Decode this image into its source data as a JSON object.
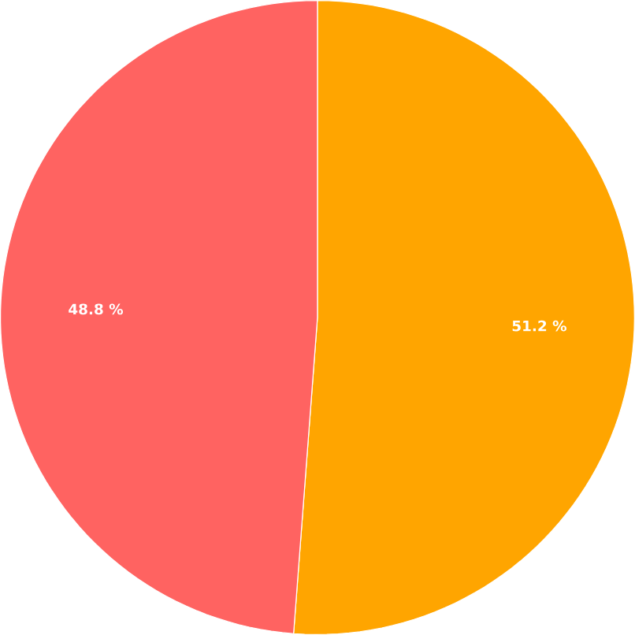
{
  "chart_data": {
    "type": "pie",
    "categories": [
      null,
      null
    ],
    "values": [
      51.2,
      48.8
    ],
    "colors": [
      "#ffa500",
      "#ff6361"
    ],
    "value_labels": [
      "51.2 %",
      "48.8 %"
    ]
  }
}
